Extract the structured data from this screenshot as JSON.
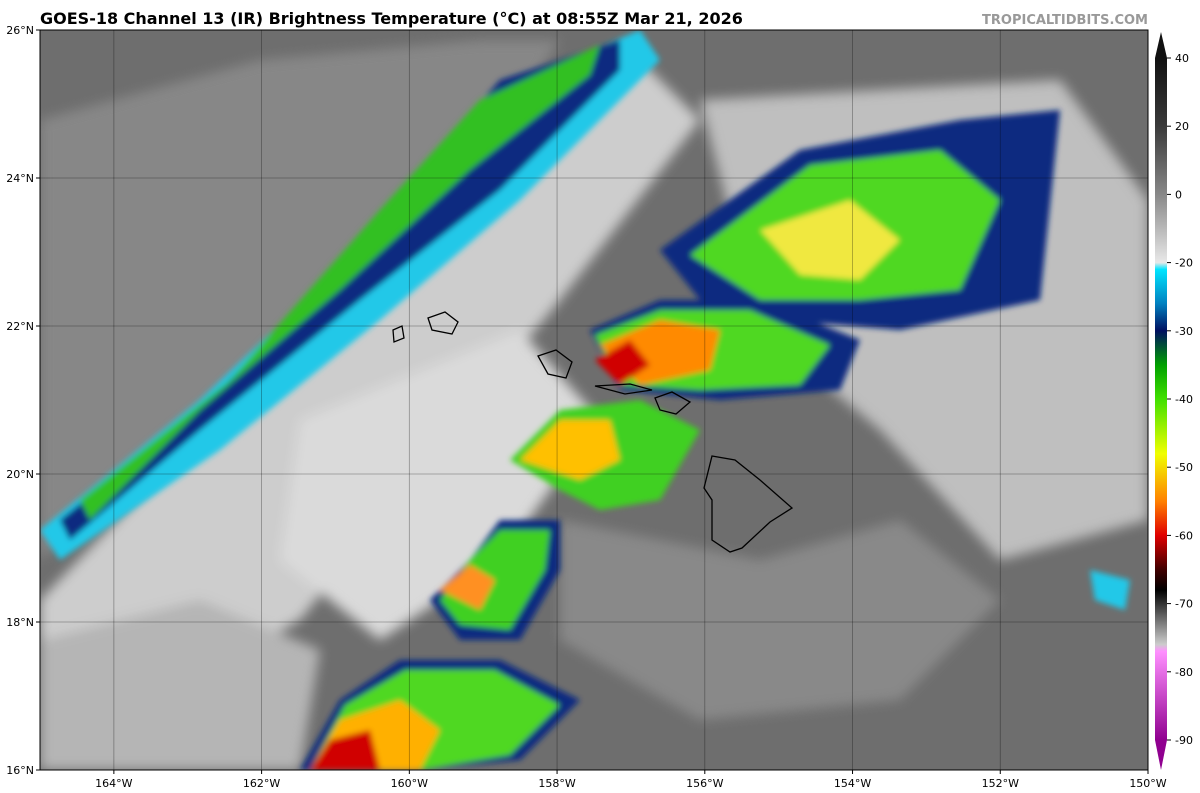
{
  "header": {
    "title": "GOES-18 Channel 13 (IR) Brightness Temperature (°C) at 08:55Z Mar 21, 2026",
    "source": "TROPICALTIDBITS.COM"
  },
  "map": {
    "xlim": [
      -165,
      -150
    ],
    "ylim": [
      16,
      26
    ],
    "grid": true,
    "xticks": [
      {
        "value": -164,
        "label": "164°W"
      },
      {
        "value": -162,
        "label": "162°W"
      },
      {
        "value": -160,
        "label": "160°W"
      },
      {
        "value": -158,
        "label": "158°W"
      },
      {
        "value": -156,
        "label": "156°W"
      },
      {
        "value": -154,
        "label": "154°W"
      },
      {
        "value": -152,
        "label": "152°W"
      },
      {
        "value": -150,
        "label": "150°W"
      }
    ],
    "yticks": [
      {
        "value": 16,
        "label": "16°N"
      },
      {
        "value": 18,
        "label": "18°N"
      },
      {
        "value": 20,
        "label": "20°N"
      },
      {
        "value": 22,
        "label": "22°N"
      },
      {
        "value": 24,
        "label": "24°N"
      },
      {
        "value": 26,
        "label": "26°N"
      }
    ]
  },
  "colorbar": {
    "ticks": [
      40,
      20,
      0,
      -20,
      -30,
      -40,
      -50,
      -60,
      -70,
      -80,
      -90
    ]
  }
}
